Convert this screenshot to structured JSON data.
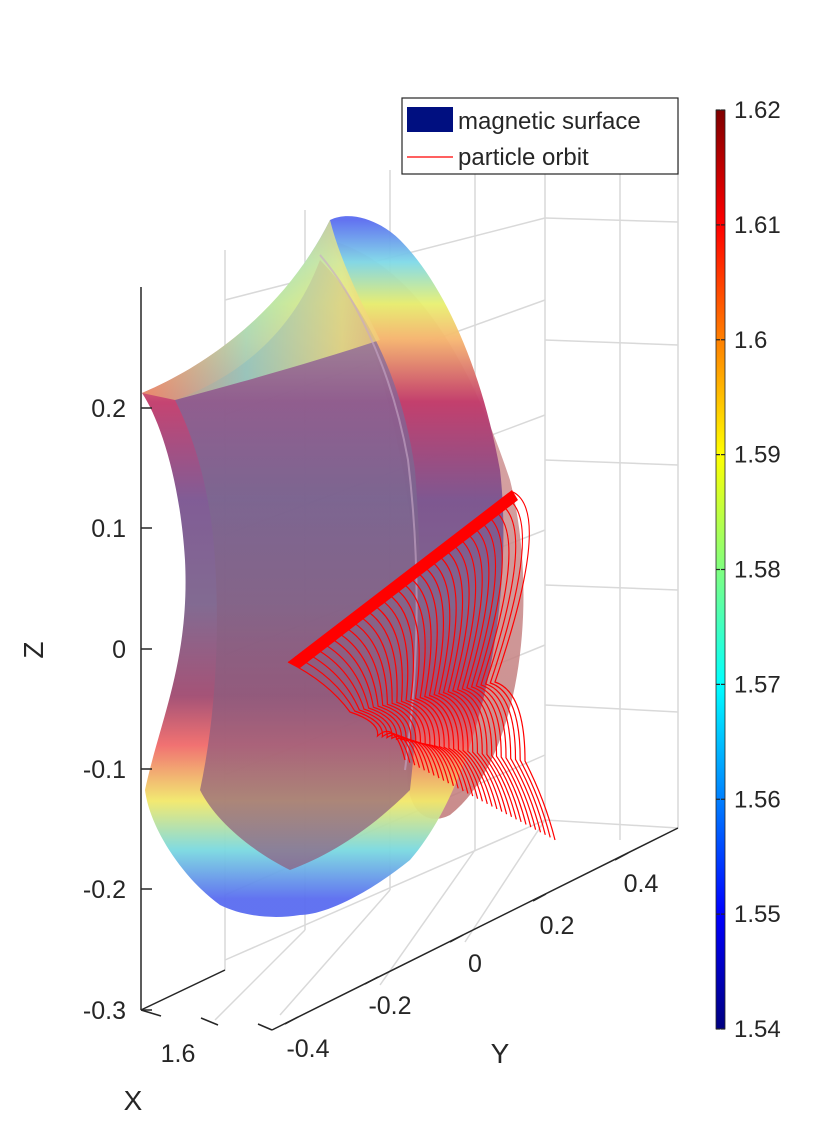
{
  "chart_data": {
    "type": "surface3d",
    "axes": {
      "x": {
        "label": "X",
        "ticks": [
          "1.6"
        ]
      },
      "y": {
        "label": "Y",
        "ticks": [
          "-0.4",
          "-0.2",
          "0",
          "0.2",
          "0.4"
        ]
      },
      "z": {
        "label": "Z",
        "ticks": [
          "0.2",
          "0.1",
          "0",
          "-0.1",
          "-0.2",
          "-0.3"
        ],
        "range": [
          -0.3,
          0.25
        ]
      }
    },
    "grid": true,
    "legend": {
      "placement": "top-right",
      "entries": [
        {
          "label": "magnetic surface",
          "color": "#000f80",
          "kind": "patch"
        },
        {
          "label": "particle orbit",
          "color": "#ff0000",
          "kind": "line"
        }
      ]
    },
    "colorbar": {
      "colormap": "jet",
      "limits": [
        1.54,
        1.62
      ],
      "ticks": [
        "1.62",
        "1.61",
        "1.6",
        "1.59",
        "1.58",
        "1.57",
        "1.56",
        "1.55",
        "1.54"
      ]
    },
    "series": [
      {
        "name": "magnetic surface",
        "kind": "surface",
        "color_by": "X"
      },
      {
        "name": "particle orbit",
        "kind": "line",
        "color": "#ff0000",
        "loops": 32
      }
    ]
  }
}
